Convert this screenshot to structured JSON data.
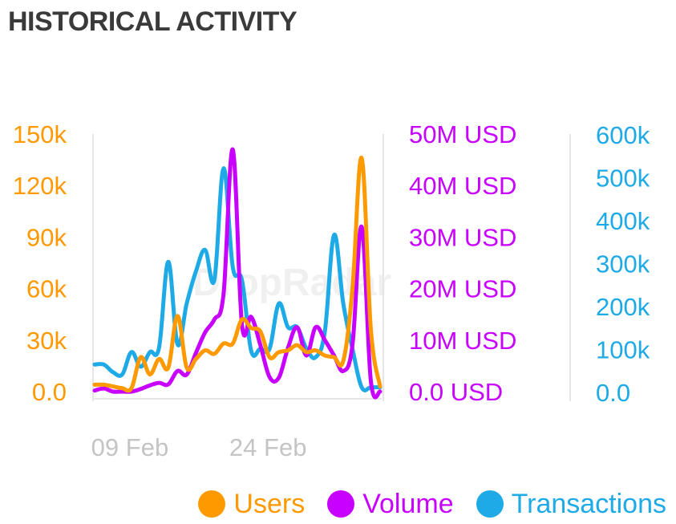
{
  "header": {
    "title": "HISTORICAL ACTIVITY"
  },
  "watermark": {
    "text": "DropRadar"
  },
  "legend": [
    {
      "label": "Users",
      "color": "#ff9900"
    },
    {
      "label": "Volume",
      "color": "#c800ff"
    },
    {
      "label": "Transactions",
      "color": "#1eaae6"
    }
  ],
  "chart_data": {
    "type": "line",
    "title": "HISTORICAL ACTIVITY",
    "x_tick_labels": [
      "09 Feb",
      "24 Feb"
    ],
    "x_tick_indices": [
      4,
      19
    ],
    "axes": {
      "users": {
        "ticks": [
          "0.0",
          "30k",
          "60k",
          "90k",
          "120k",
          "150k"
        ],
        "range": [
          0,
          150000
        ],
        "color": "#ff9900"
      },
      "volume": {
        "ticks": [
          "0.0 USD",
          "10M USD",
          "20M USD",
          "30M USD",
          "40M USD",
          "50M USD"
        ],
        "range": [
          0,
          50000000
        ],
        "color": "#c800ff"
      },
      "transactions": {
        "ticks": [
          "0.0",
          "100k",
          "200k",
          "300k",
          "400k",
          "500k",
          "600k"
        ],
        "range": [
          0,
          600000
        ],
        "color": "#1eaae6"
      }
    },
    "grid": false,
    "legend_position": "bottom-right",
    "series": [
      {
        "name": "Users",
        "axis": "users",
        "color": "#ff9900",
        "values": [
          4000,
          4000,
          3000,
          2000,
          2000,
          20000,
          10000,
          19000,
          14000,
          44000,
          14000,
          19000,
          24000,
          22000,
          28000,
          28000,
          42000,
          37000,
          35000,
          20000,
          23000,
          24000,
          27000,
          23000,
          24000,
          21000,
          20000,
          18000,
          60000,
          136000,
          36000,
          3000
        ]
      },
      {
        "name": "Volume",
        "axis": "volume",
        "color": "#c800ff",
        "values": [
          200000,
          600000,
          0,
          0,
          0,
          500000,
          1200000,
          1700000,
          1400000,
          4000000,
          3300000,
          7500000,
          11500000,
          14000000,
          19000000,
          47000000,
          13000000,
          14500000,
          9000000,
          2800000,
          2700000,
          8500000,
          12500000,
          7000000,
          12500000,
          10000000,
          7000000,
          4000000,
          9000000,
          32000000,
          2000000,
          0
        ]
      },
      {
        "name": "Transactions",
        "axis": "transactions",
        "color": "#1eaae6",
        "values": [
          63000,
          63000,
          45000,
          40000,
          92000,
          58000,
          92000,
          103000,
          302000,
          110000,
          205000,
          280000,
          330000,
          260000,
          520000,
          290000,
          260000,
          95000,
          100000,
          100000,
          205000,
          150000,
          150000,
          100000,
          80000,
          140000,
          365000,
          205000,
          100000,
          10000,
          10000,
          10000
        ]
      }
    ]
  }
}
